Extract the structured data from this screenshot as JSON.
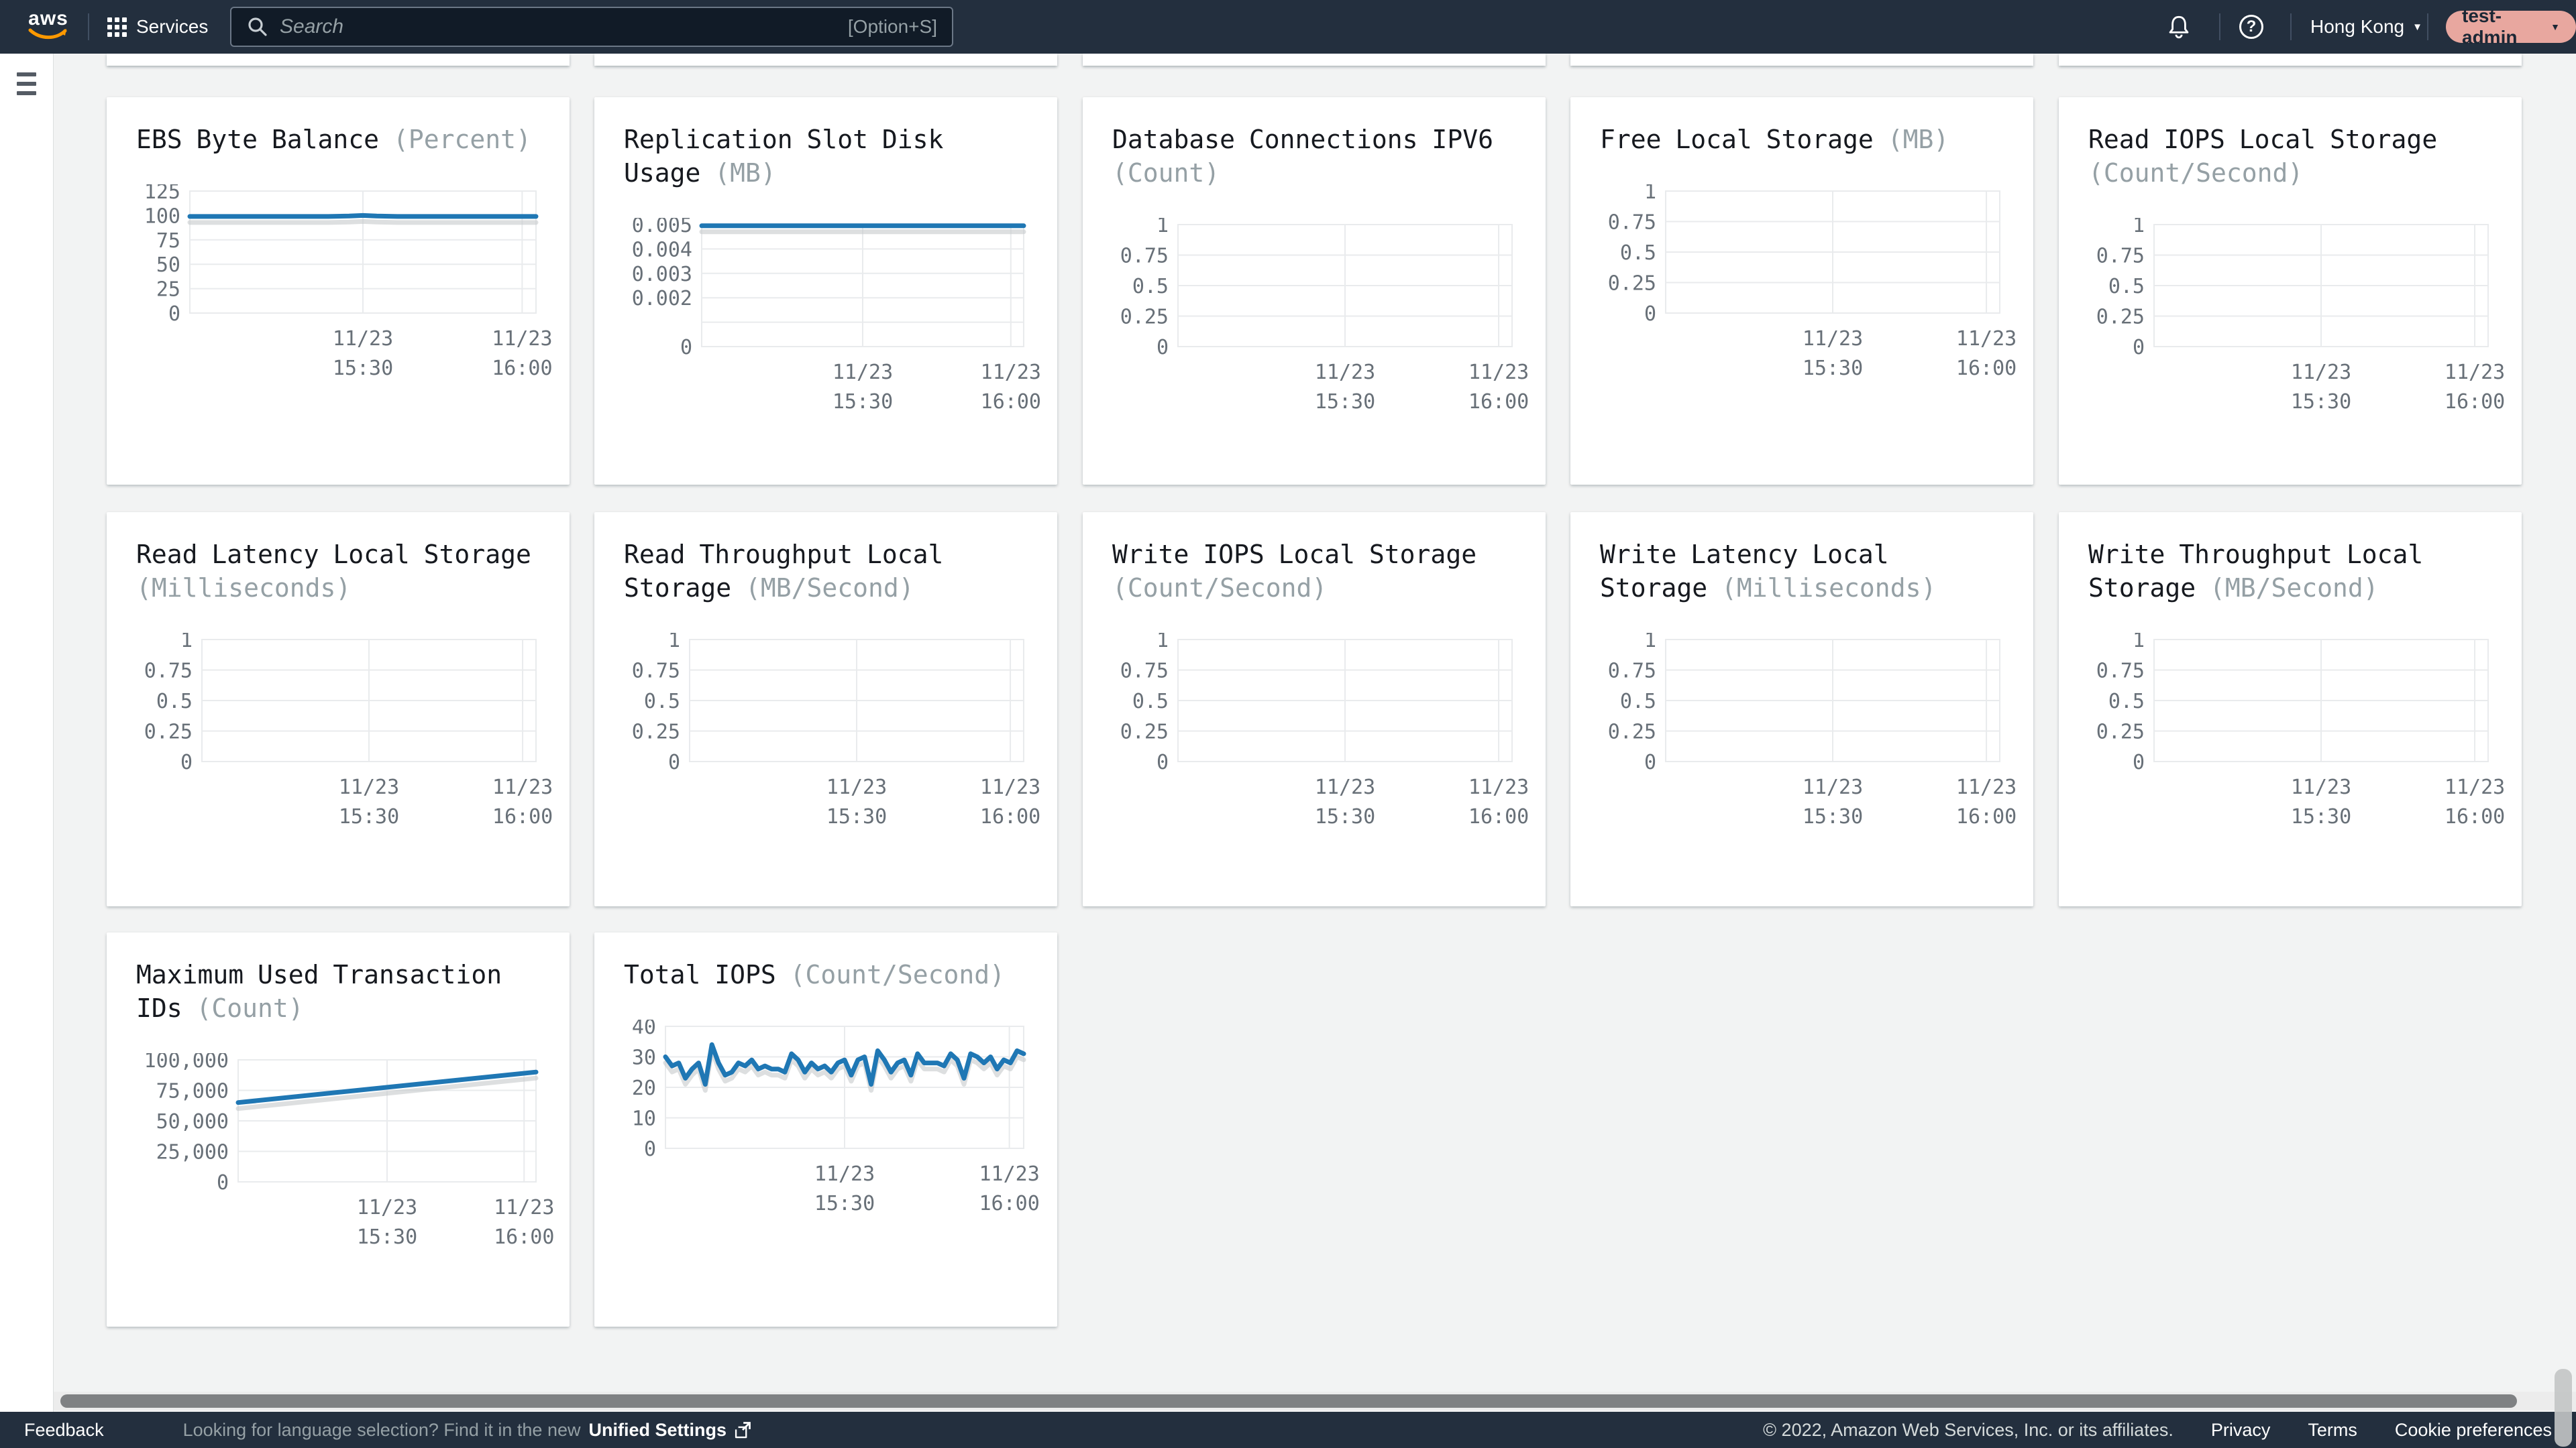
{
  "navbar": {
    "logo_text": "aws",
    "services_label": "Services",
    "search": {
      "placeholder": "Search",
      "shortcut": "[Option+S]"
    },
    "region": "Hong Kong",
    "account": "test-admin",
    "colors": {
      "navbar_bg": "#232f3e",
      "logo_smile": "#ff9900",
      "account_pill_bg": "#e8a79f"
    }
  },
  "footer": {
    "feedback_label": "Feedback",
    "language_hint": "Looking for language selection? Find it in the new",
    "unified_settings_label": "Unified Settings",
    "copyright": "© 2022, Amazon Web Services, Inc. or its affiliates.",
    "links": [
      "Privacy",
      "Terms",
      "Cookie preferences"
    ]
  },
  "chart_defaults": {
    "line_color": "#1f77b4",
    "grid_color": "#e9ebed",
    "axis_text_color": "#687078",
    "x_tick_pos": [
      0.5,
      0.96
    ],
    "x_tick_labels": [
      [
        "11/23",
        "15:30"
      ],
      [
        "11/23",
        "16:00"
      ]
    ]
  },
  "chart_data": [
    {
      "type": "line",
      "title": "EBS Byte Balance",
      "unit": "(Percent)",
      "y_tick_labels": [
        "125",
        "100",
        "75",
        "50",
        "25",
        "0"
      ],
      "y_tick_values": [
        125,
        100,
        75,
        50,
        25,
        0
      ],
      "y_range": [
        0,
        125
      ],
      "unlabeled_gridlines": [],
      "series": [
        [
          0,
          99
        ],
        [
          0.4,
          99
        ],
        [
          0.46,
          99.4
        ],
        [
          0.5,
          100
        ],
        [
          0.54,
          99.4
        ],
        [
          0.6,
          99
        ],
        [
          1,
          99
        ]
      ]
    },
    {
      "type": "line",
      "title": "Replication Slot Disk Usage",
      "unit": "(MB)",
      "y_tick_labels": [
        "0.005",
        "0.004",
        "0.003",
        "0.002",
        "0"
      ],
      "y_tick_values": [
        0.005,
        0.004,
        0.003,
        0.002,
        0
      ],
      "y_range": [
        0,
        0.005
      ],
      "unlabeled_gridlines": [
        0.001
      ],
      "series": [
        [
          0,
          0.00495
        ],
        [
          1,
          0.00495
        ]
      ]
    },
    {
      "type": "line",
      "title": "Database Connections IPV6",
      "unit": "(Count)",
      "y_tick_labels": [
        "1",
        "0.75",
        "0.5",
        "0.25",
        "0"
      ],
      "y_tick_values": [
        1,
        0.75,
        0.5,
        0.25,
        0
      ],
      "y_range": [
        0,
        1
      ],
      "unlabeled_gridlines": [],
      "series": []
    },
    {
      "type": "line",
      "title": "Free Local Storage",
      "unit": "(MB)",
      "y_tick_labels": [
        "1",
        "0.75",
        "0.5",
        "0.25",
        "0"
      ],
      "y_tick_values": [
        1,
        0.75,
        0.5,
        0.25,
        0
      ],
      "y_range": [
        0,
        1
      ],
      "unlabeled_gridlines": [],
      "series": []
    },
    {
      "type": "line",
      "title": "Read IOPS Local Storage",
      "unit": "(Count/Second)",
      "y_tick_labels": [
        "1",
        "0.75",
        "0.5",
        "0.25",
        "0"
      ],
      "y_tick_values": [
        1,
        0.75,
        0.5,
        0.25,
        0
      ],
      "y_range": [
        0,
        1
      ],
      "unlabeled_gridlines": [],
      "series": []
    },
    {
      "type": "line",
      "title": "Read Latency Local Storage",
      "unit": "(Milliseconds)",
      "y_tick_labels": [
        "1",
        "0.75",
        "0.5",
        "0.25",
        "0"
      ],
      "y_tick_values": [
        1,
        0.75,
        0.5,
        0.25,
        0
      ],
      "y_range": [
        0,
        1
      ],
      "unlabeled_gridlines": [],
      "series": []
    },
    {
      "type": "line",
      "title": "Read Throughput Local Storage",
      "unit": "(MB/Second)",
      "y_tick_labels": [
        "1",
        "0.75",
        "0.5",
        "0.25",
        "0"
      ],
      "y_tick_values": [
        1,
        0.75,
        0.5,
        0.25,
        0
      ],
      "y_range": [
        0,
        1
      ],
      "unlabeled_gridlines": [],
      "series": []
    },
    {
      "type": "line",
      "title": "Write IOPS Local Storage",
      "unit": "(Count/Second)",
      "y_tick_labels": [
        "1",
        "0.75",
        "0.5",
        "0.25",
        "0"
      ],
      "y_tick_values": [
        1,
        0.75,
        0.5,
        0.25,
        0
      ],
      "y_range": [
        0,
        1
      ],
      "unlabeled_gridlines": [],
      "series": []
    },
    {
      "type": "line",
      "title": "Write Latency Local Storage",
      "unit": "(Milliseconds)",
      "y_tick_labels": [
        "1",
        "0.75",
        "0.5",
        "0.25",
        "0"
      ],
      "y_tick_values": [
        1,
        0.75,
        0.5,
        0.25,
        0
      ],
      "y_range": [
        0,
        1
      ],
      "unlabeled_gridlines": [],
      "series": []
    },
    {
      "type": "line",
      "title": "Write Throughput Local Storage",
      "unit": "(MB/Second)",
      "y_tick_labels": [
        "1",
        "0.75",
        "0.5",
        "0.25",
        "0"
      ],
      "y_tick_values": [
        1,
        0.75,
        0.5,
        0.25,
        0
      ],
      "y_range": [
        0,
        1
      ],
      "unlabeled_gridlines": [],
      "series": []
    },
    {
      "type": "line",
      "title": "Maximum Used Transaction IDs",
      "unit": "(Count)",
      "y_tick_labels": [
        "100,000",
        "75,000",
        "50,000",
        "25,000",
        "0"
      ],
      "y_tick_values": [
        100000,
        75000,
        50000,
        25000,
        0
      ],
      "y_range": [
        0,
        100000
      ],
      "unlabeled_gridlines": [],
      "series": [
        [
          0,
          65000
        ],
        [
          1,
          90000
        ]
      ]
    },
    {
      "type": "line",
      "title": "Total IOPS",
      "unit": "(Count/Second)",
      "y_tick_labels": [
        "40",
        "30",
        "20",
        "10",
        "0"
      ],
      "y_tick_values": [
        40,
        30,
        20,
        10,
        0
      ],
      "y_range": [
        0,
        40
      ],
      "unlabeled_gridlines": [],
      "series": [
        30,
        27,
        28,
        23,
        26,
        28,
        21,
        34,
        28,
        24,
        25,
        28,
        27,
        29,
        26,
        27,
        26,
        26,
        25,
        31,
        29,
        25,
        28,
        26,
        27,
        25,
        28,
        29,
        24,
        29,
        30,
        21,
        32,
        29,
        25,
        28,
        29,
        24,
        31,
        28,
        28,
        28,
        27,
        31,
        29,
        23,
        31,
        30,
        28,
        30,
        26,
        29,
        28,
        32,
        31
      ]
    }
  ]
}
